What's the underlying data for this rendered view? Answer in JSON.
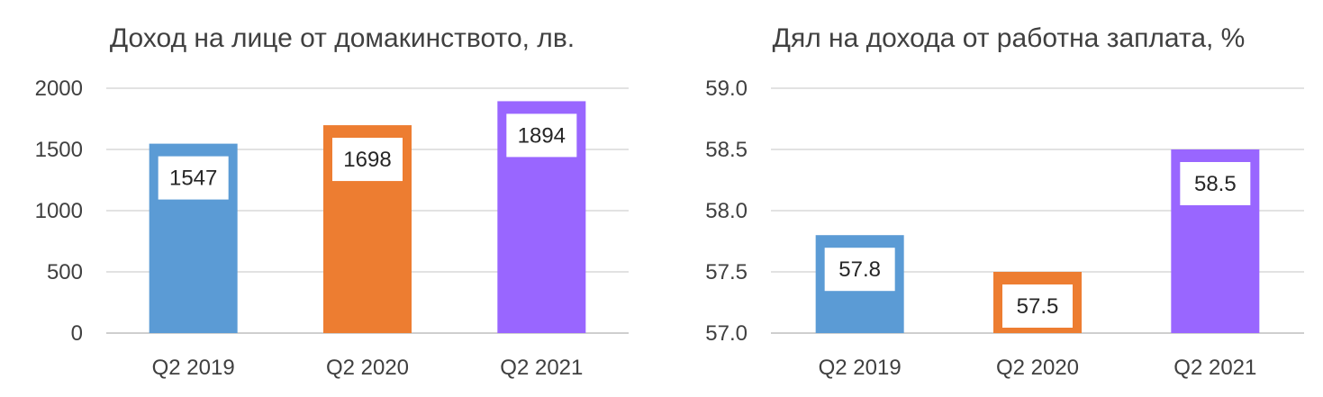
{
  "chart_data": [
    {
      "type": "bar",
      "title": "Доход на лице от домакинството, лв.",
      "categories": [
        "Q2 2019",
        "Q2 2020",
        "Q2 2021"
      ],
      "values": [
        1547,
        1698,
        1894
      ],
      "data_labels": [
        "1547",
        "1698",
        "1894"
      ],
      "colors": [
        "#5b9bd5",
        "#ed7d31",
        "#9966ff"
      ],
      "ylim": [
        0,
        2000
      ],
      "yticks": [
        0,
        500,
        1000,
        1500,
        2000
      ],
      "ytick_labels": [
        "0",
        "500",
        "1000",
        "1500",
        "2000"
      ],
      "grid": true,
      "legend": "none"
    },
    {
      "type": "bar",
      "title": "Дял на дохода от работна заплата, %",
      "categories": [
        "Q2 2019",
        "Q2 2020",
        "Q2 2021"
      ],
      "values": [
        57.8,
        57.5,
        58.5
      ],
      "data_labels": [
        "57.8",
        "57.5",
        "58.5"
      ],
      "colors": [
        "#5b9bd5",
        "#ed7d31",
        "#9966ff"
      ],
      "ylim": [
        57.0,
        59.0
      ],
      "yticks": [
        57.0,
        57.5,
        58.0,
        58.5,
        59.0
      ],
      "ytick_labels": [
        "57.0",
        "57.5",
        "58.0",
        "58.5",
        "59.0"
      ],
      "grid": true,
      "legend": "none"
    }
  ]
}
